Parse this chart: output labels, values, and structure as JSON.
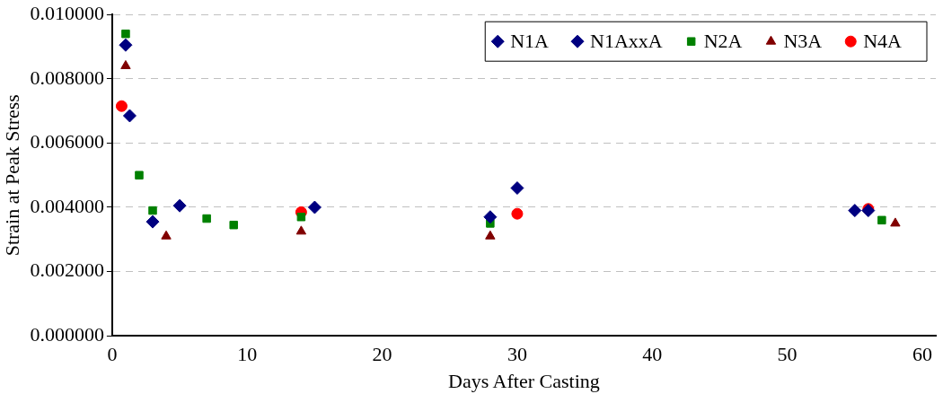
{
  "chart_data": {
    "type": "scatter",
    "xlabel": "Days After Casting",
    "ylabel": "Strain at Peak Stress",
    "xlim": [
      0,
      61
    ],
    "xticks": [
      0,
      10,
      20,
      30,
      40,
      50,
      60
    ],
    "ylim": [
      0,
      0.01
    ],
    "yticks": [
      {
        "value": 0,
        "label": "0.000000"
      },
      {
        "value": 0.002,
        "label": "0.002000"
      },
      {
        "value": 0.004,
        "label": "0.004000"
      },
      {
        "value": 0.006,
        "label": "0.006000"
      },
      {
        "value": 0.008,
        "label": "0.008000"
      },
      {
        "value": 0.01,
        "label": "0.010000"
      }
    ],
    "grid": "y",
    "legend": "top right",
    "series": [
      {
        "name": "N1A",
        "color": "#000080",
        "marker": "diamond",
        "x": [
          1,
          3,
          15,
          28,
          56
        ],
        "values": [
          0.00905,
          0.00355,
          0.004,
          0.0037,
          0.0039
        ]
      },
      {
        "name": "N1AxxA",
        "color": "#000080",
        "marker": "diamond",
        "x": [
          1.3,
          5,
          30,
          55
        ],
        "values": [
          0.00685,
          0.00405,
          0.0046,
          0.0039
        ]
      },
      {
        "name": "N2A",
        "color": "#008000",
        "marker": "square",
        "x": [
          1,
          2,
          3,
          7,
          9,
          14,
          28,
          57
        ],
        "values": [
          0.0094,
          0.005,
          0.0039,
          0.00365,
          0.00345,
          0.0037,
          0.0035,
          0.0036
        ]
      },
      {
        "name": "N3A",
        "color": "#800000",
        "marker": "triangle",
        "x": [
          1,
          4,
          14,
          28,
          58
        ],
        "values": [
          0.0084,
          0.0031,
          0.00325,
          0.0031,
          0.0035
        ]
      },
      {
        "name": "N4A",
        "color": "#ff0000",
        "marker": "circle",
        "x": [
          0.7,
          14,
          30,
          56
        ],
        "values": [
          0.00715,
          0.00385,
          0.0038,
          0.00395
        ]
      }
    ]
  }
}
